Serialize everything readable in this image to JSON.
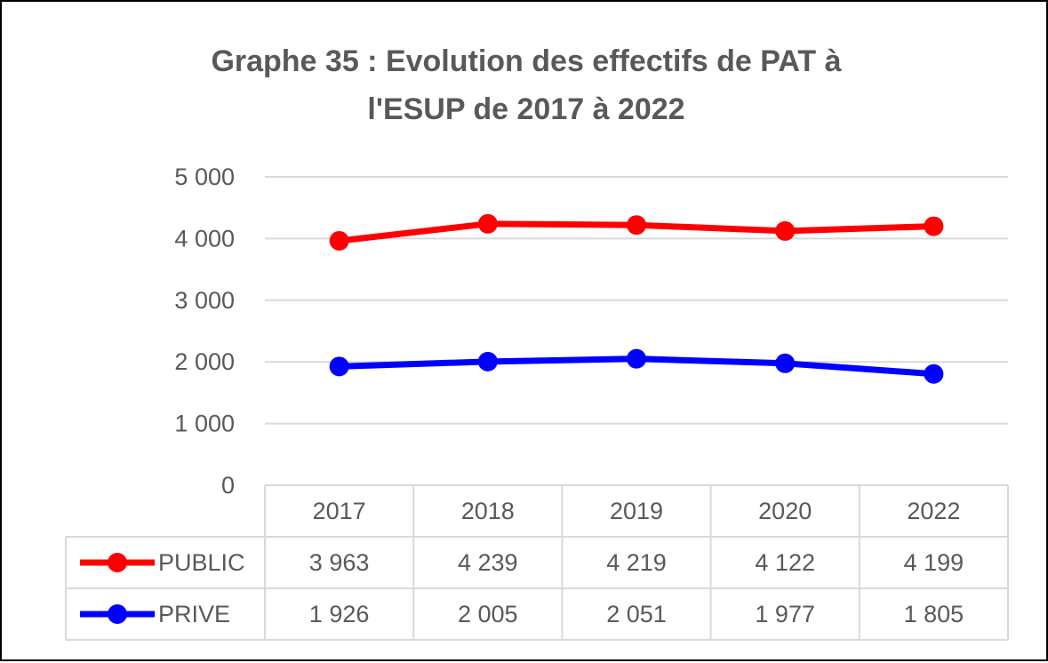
{
  "chart_data": {
    "type": "line",
    "title_lines": [
      "Graphe 35 : Evolution des effectifs de PAT à",
      "l'ESUP de 2017 à 2022"
    ],
    "categories": [
      "2017",
      "2018",
      "2019",
      "2020",
      "2022"
    ],
    "series": [
      {
        "name": "PUBLIC",
        "color": "#ff0000",
        "values": [
          3963,
          4239,
          4219,
          4122,
          4199
        ],
        "labels": [
          "3 963",
          "4 239",
          "4 219",
          "4 122",
          "4 199"
        ]
      },
      {
        "name": "PRIVE",
        "color": "#0000ff",
        "values": [
          1926,
          2005,
          2051,
          1977,
          1805
        ],
        "labels": [
          "1 926",
          "2 005",
          "2 051",
          "1 977",
          "1 805"
        ]
      }
    ],
    "ylim": [
      0,
      5000
    ],
    "y_ticks": [
      0,
      1000,
      2000,
      3000,
      4000,
      5000
    ],
    "y_tick_labels": [
      "0",
      "1 000",
      "2 000",
      "3 000",
      "4 000",
      "5 000"
    ],
    "grid": true,
    "data_table": true,
    "legend": "data-table-left"
  }
}
